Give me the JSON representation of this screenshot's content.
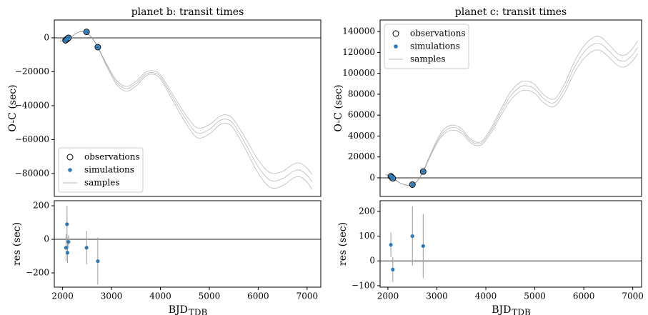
{
  "chart_data": [
    {
      "type": "line",
      "title": "planet b: transit times",
      "ylabel": "O-C (sec)",
      "xlim": [
        1830,
        7280
      ],
      "ylim": [
        -93500,
        10500
      ],
      "yticks": [
        0,
        {
          "value": -20000,
          "label": "−20000"
        },
        {
          "value": -40000,
          "label": "−40000"
        },
        {
          "value": -60000,
          "label": "−60000"
        },
        {
          "value": -80000,
          "label": "−80000"
        }
      ],
      "hline": 0,
      "legend": "lower left",
      "series": [
        {
          "name": "observations",
          "color": "#000000",
          "marker": "open",
          "x": [
            2060,
            2080,
            2100,
            2120,
            2490,
            2720
          ],
          "values": [
            -1500,
            -1000,
            -500,
            0,
            3500,
            -5500
          ]
        },
        {
          "name": "simulations",
          "color": "#2e7ab6",
          "marker": "filled",
          "x": [
            2060,
            2080,
            2100,
            2120,
            2490,
            2720
          ],
          "values": [
            -1500,
            -1000,
            -500,
            0,
            3500,
            -5500
          ]
        },
        {
          "name": "samples",
          "color": "#8a8a8a",
          "x": [
            1950,
            2050,
            2150,
            2300,
            2450,
            2600,
            2720,
            2900,
            3100,
            3300,
            3500,
            3700,
            3850,
            4000,
            4250,
            4500,
            4750,
            5000,
            5200,
            5350,
            5500,
            5750,
            6000,
            6250,
            6500,
            6700,
            6850,
            7000,
            7100
          ],
          "lines": [
            [
              -2000,
              -1500,
              0,
              3000,
              3500,
              0,
              -5500,
              -16000,
              -26000,
              -30000,
              -27000,
              -21500,
              -20500,
              -23000,
              -35000,
              -47000,
              -56000,
              -54000,
              -49000,
              -48000,
              -51000,
              -63000,
              -76000,
              -84000,
              -83000,
              -79000,
              -78000,
              -81000,
              -85000
            ],
            [
              -2000,
              -1500,
              0,
              3000,
              3500,
              0,
              -5400,
              -15400,
              -24900,
              -28600,
              -25700,
              -20300,
              -19400,
              -21800,
              -33200,
              -44600,
              -53000,
              -51200,
              -46500,
              -45400,
              -48300,
              -59700,
              -72000,
              -79600,
              -78700,
              -74800,
              -73800,
              -76800,
              -80600
            ],
            [
              -2000,
              -1500,
              0,
              3000,
              3500,
              0,
              -5600,
              -16800,
              -27300,
              -31500,
              -28400,
              -22600,
              -21500,
              -24200,
              -36800,
              -49400,
              -58800,
              -56700,
              -51500,
              -50400,
              -53600,
              -66200,
              -79800,
              -88200,
              -87200,
              -83000,
              -81900,
              -85100,
              -89200
            ]
          ]
        }
      ]
    },
    {
      "type": "errorbar",
      "ylabel": "res (sec)",
      "xlabel": "BJD",
      "xlabel_sub": "TDB",
      "xlim": [
        1830,
        7280
      ],
      "ylim": [
        -285,
        230
      ],
      "xticks": [
        2000,
        3000,
        4000,
        5000,
        6000,
        7000
      ],
      "yticks": [
        200,
        0,
        {
          "value": -200,
          "label": "−200"
        }
      ],
      "hline": 0,
      "color": "#2e7ab6",
      "error_color": "#9a9a9a",
      "x": [
        2070,
        2090,
        2100,
        2120,
        2490,
        2720
      ],
      "values": [
        -50,
        90,
        -80,
        -15,
        -50,
        -130
      ],
      "errors": [
        80,
        110,
        60,
        40,
        100,
        140
      ]
    },
    {
      "type": "line",
      "title": "planet c: transit times",
      "ylabel": "O-C (sec)",
      "xlim": [
        1840,
        7180
      ],
      "ylim": [
        -17800,
        151000
      ],
      "yticks": [
        0,
        20000,
        40000,
        60000,
        80000,
        100000,
        120000,
        140000
      ],
      "hline": 0,
      "legend": "upper left",
      "series": [
        {
          "name": "observations",
          "color": "#000000",
          "marker": "open",
          "x": [
            2060,
            2080,
            2100,
            2500,
            2720
          ],
          "values": [
            1500,
            500,
            -500,
            -6500,
            6000
          ]
        },
        {
          "name": "simulations",
          "color": "#2e7ab6",
          "marker": "filled",
          "x": [
            2060,
            2080,
            2100,
            2500,
            2720
          ],
          "values": [
            1500,
            500,
            -500,
            -6500,
            6000
          ]
        },
        {
          "name": "samples",
          "color": "#8a8a8a",
          "x": [
            1950,
            2060,
            2150,
            2300,
            2480,
            2600,
            2720,
            2900,
            3100,
            3300,
            3500,
            3700,
            3900,
            4100,
            4300,
            4500,
            4700,
            4850,
            5000,
            5200,
            5400,
            5600,
            5800,
            6000,
            6200,
            6350,
            6500,
            6700,
            6850,
            7000,
            7100
          ],
          "lines": [
            [
              3000,
              1500,
              -2000,
              -6000,
              -7000,
              -3000,
              6000,
              25000,
              42000,
              48000,
              45000,
              35000,
              33000,
              45000,
              62000,
              78000,
              87000,
              88000,
              85000,
              75000,
              72000,
              85000,
              105000,
              120000,
              128000,
              128000,
              122000,
              113000,
              112000,
              118000,
              125000
            ],
            [
              3000,
              1500,
              -2000,
              -6000,
              -7000,
              -3000,
              6200,
              26200,
              44100,
              50400,
              47200,
              36700,
              34600,
              47200,
              65100,
              81900,
              91300,
              92400,
              89200,
              78700,
              75600,
              89200,
              110200,
              126000,
              134400,
              134400,
              128100,
              118600,
              117600,
              123900,
              131200
            ],
            [
              3000,
              1500,
              -2000,
              -6000,
              -7000,
              -3000,
              5800,
              23800,
              39900,
              45600,
              42700,
              33200,
              31300,
              42700,
              58900,
              74100,
              82600,
              83600,
              80700,
              71200,
              68400,
              80700,
              99700,
              114000,
              121600,
              121600,
              115900,
              107300,
              106400,
              112100,
              118700
            ]
          ]
        }
      ]
    },
    {
      "type": "errorbar",
      "ylabel": "res (sec)",
      "xlabel": "BJD",
      "xlabel_sub": "TDB",
      "xlim": [
        1840,
        7180
      ],
      "ylim": [
        -106,
        243
      ],
      "xticks": [
        2000,
        3000,
        4000,
        5000,
        6000,
        7000
      ],
      "yticks": [
        200,
        100,
        0,
        {
          "value": -100,
          "label": "−100"
        }
      ],
      "hline": 0,
      "color": "#2e7ab6",
      "error_color": "#9a9a9a",
      "x": [
        2060,
        2100,
        2500,
        2720
      ],
      "values": [
        65,
        -35,
        100,
        60
      ],
      "errors": [
        50,
        50,
        120,
        130
      ]
    }
  ]
}
